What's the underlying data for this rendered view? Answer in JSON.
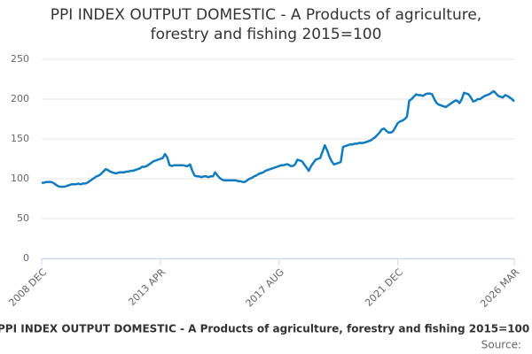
{
  "chart_data": {
    "type": "line",
    "title": "PPI INDEX OUTPUT DOMESTIC - A Products of agriculture, forestry and fishing 2015=100",
    "source": "Source:",
    "categories": [
      "2008 DEC",
      null,
      null,
      null,
      null,
      null,
      null,
      null,
      null,
      null,
      null,
      null,
      null,
      null,
      null,
      null,
      null,
      null,
      null,
      null,
      null,
      null,
      null,
      null,
      null,
      null,
      null,
      null,
      null,
      null,
      null,
      null,
      null,
      null,
      null,
      null,
      null,
      null,
      null,
      null,
      null,
      null,
      null,
      null,
      null,
      null,
      null,
      null,
      null,
      null,
      null,
      null,
      "2013 APR",
      null,
      null,
      null,
      null,
      null,
      null,
      null,
      null,
      null,
      null,
      null,
      null,
      null,
      null,
      null,
      null,
      null,
      null,
      null,
      null,
      null,
      null,
      null,
      null,
      null,
      null,
      null,
      null,
      null,
      null,
      null,
      null,
      null,
      null,
      null,
      null,
      null,
      null,
      null,
      null,
      null,
      null,
      null,
      null,
      null,
      null,
      null,
      null,
      null,
      null,
      null,
      "2017 AUG",
      null,
      null,
      null,
      null,
      null,
      null,
      null,
      null,
      null,
      null,
      null,
      null,
      null,
      null,
      null,
      null,
      null,
      null,
      null,
      null,
      null,
      null,
      null,
      null,
      null,
      null,
      null,
      null,
      null,
      null,
      null,
      null,
      null,
      null,
      null,
      null,
      null,
      null,
      null,
      null,
      null,
      null,
      null,
      null,
      null,
      null,
      null,
      null,
      null,
      null,
      null,
      "2021 DEC",
      null,
      null,
      null,
      null,
      null,
      null,
      null,
      null,
      null,
      null,
      null,
      null,
      null,
      null,
      null,
      null,
      null,
      null,
      null,
      null,
      null,
      null,
      null,
      null,
      null,
      null,
      null,
      null,
      null,
      null,
      null,
      null,
      null,
      null,
      null,
      null,
      null,
      null,
      null,
      null,
      null,
      null,
      null,
      null,
      null,
      null,
      null,
      null,
      null,
      null,
      "2026 MAR"
    ],
    "series": [
      {
        "name": "PPI INDEX OUTPUT DOMESTIC - A Products of agriculture, forestry and fishing 2015=100",
        "color": "#0f7cbf",
        "values": [
          95,
          95,
          96,
          96,
          96,
          95,
          93,
          91,
          90,
          90,
          90,
          91,
          92,
          93,
          93,
          93,
          94,
          93,
          94,
          94,
          95,
          97,
          99,
          101,
          103,
          104,
          106,
          109,
          112,
          111,
          109,
          108,
          107,
          107,
          108,
          108,
          108,
          109,
          109,
          110,
          110,
          111,
          112,
          113,
          115,
          115,
          116,
          118,
          120,
          122,
          123,
          124,
          125,
          126,
          131,
          127,
          117,
          116,
          117,
          117,
          117,
          117,
          117,
          116,
          116,
          118,
          110,
          104,
          103,
          103,
          102,
          103,
          103,
          102,
          103,
          103,
          108,
          104,
          101,
          99,
          98,
          98,
          98,
          98,
          98,
          98,
          97,
          97,
          96,
          96,
          98,
          100,
          101,
          103,
          104,
          106,
          107,
          108,
          110,
          111,
          112,
          113,
          114,
          115,
          116,
          117,
          117,
          118,
          118,
          116,
          116,
          118,
          124,
          123,
          122,
          118,
          114,
          110,
          116,
          120,
          124,
          125,
          126,
          134,
          142,
          136,
          128,
          122,
          118,
          119,
          120,
          121,
          140,
          141,
          142,
          143,
          143,
          144,
          144,
          145,
          145,
          145,
          146,
          147,
          148,
          150,
          152,
          155,
          158,
          162,
          163,
          160,
          158,
          158,
          160,
          165,
          170,
          172,
          173,
          175,
          178,
          198,
          200,
          203,
          206,
          205,
          205,
          204,
          206,
          207,
          207,
          206,
          200,
          195,
          193,
          192,
          191,
          190,
          192,
          194,
          196,
          198,
          198,
          195,
          200,
          208,
          207,
          206,
          202,
          197,
          198,
          200,
          200,
          202,
          204,
          205,
          206,
          208,
          210,
          207,
          204,
          203,
          202,
          205,
          204,
          202,
          200,
          197
        ]
      }
    ],
    "ylim": [
      0,
      250
    ],
    "yticks": [
      0,
      50,
      100,
      150,
      200,
      250
    ],
    "grid": true
  }
}
